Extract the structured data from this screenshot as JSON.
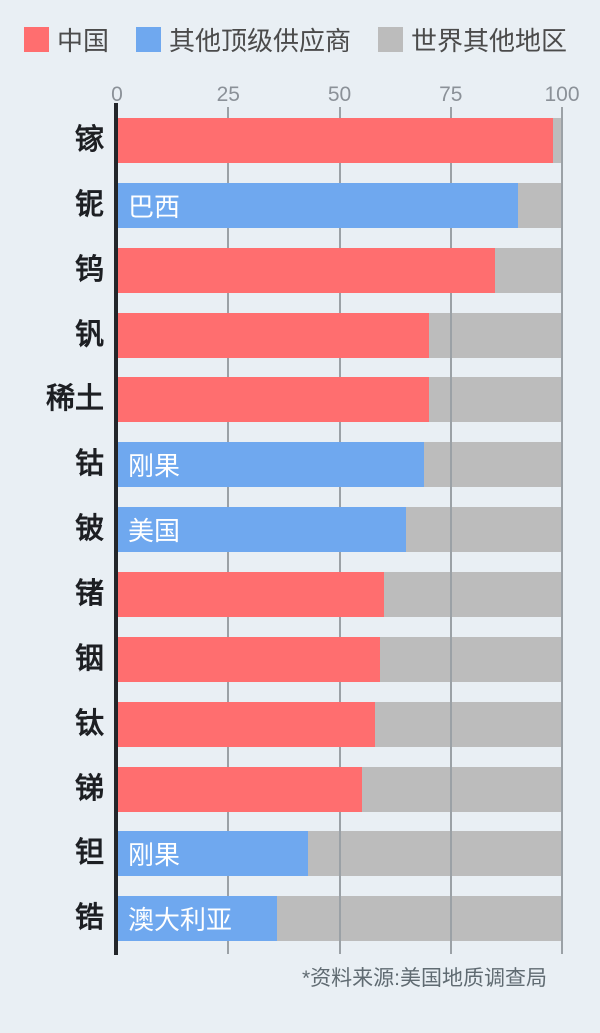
{
  "colors": {
    "background": "#e9eff4",
    "china_red": "#ff6e6f",
    "supplier_blue": "#6fa8ef",
    "rest_gray": "#bcbcbc",
    "axis_black": "#23262a",
    "gridline_gray": "#9ba1a6",
    "tick_text": "#8b9198",
    "legend_text": "#4b4b4b",
    "category_text": "#1d1f23",
    "bar_label_text": "#ffffff",
    "source_text": "#606b72"
  },
  "legend": {
    "items": [
      {
        "label": "中国",
        "color": "#ff6e6f"
      },
      {
        "label": "其他顶级供应商",
        "color": "#6fa8ef"
      },
      {
        "label": "世界其他地区",
        "color": "#bcbcbc"
      }
    ]
  },
  "chart_data": {
    "type": "bar",
    "orientation": "horizontal",
    "title": "",
    "xlabel": "",
    "ylabel": "",
    "xlim": [
      0,
      100
    ],
    "x_ticks": [
      0,
      25,
      50,
      75,
      100
    ],
    "grid": true,
    "legend_position": "top",
    "track_full_width": 100,
    "categories": [
      "镓",
      "铌",
      "钨",
      "钒",
      "稀土",
      "钴",
      "铍",
      "锗",
      "铟",
      "钛",
      "锑",
      "钽",
      "锆"
    ],
    "rows": [
      {
        "category": "镓",
        "series": "中国",
        "value": 98,
        "bar_label": ""
      },
      {
        "category": "铌",
        "series": "其他顶级供应商",
        "value": 90,
        "bar_label": "巴西"
      },
      {
        "category": "钨",
        "series": "中国",
        "value": 85,
        "bar_label": ""
      },
      {
        "category": "钒",
        "series": "中国",
        "value": 70,
        "bar_label": ""
      },
      {
        "category": "稀土",
        "series": "中国",
        "value": 70,
        "bar_label": ""
      },
      {
        "category": "钴",
        "series": "其他顶级供应商",
        "value": 69,
        "bar_label": "刚果"
      },
      {
        "category": "铍",
        "series": "其他顶级供应商",
        "value": 65,
        "bar_label": "美国"
      },
      {
        "category": "锗",
        "series": "中国",
        "value": 60,
        "bar_label": ""
      },
      {
        "category": "铟",
        "series": "中国",
        "value": 59,
        "bar_label": ""
      },
      {
        "category": "钛",
        "series": "中国",
        "value": 58,
        "bar_label": ""
      },
      {
        "category": "锑",
        "series": "中国",
        "value": 55,
        "bar_label": ""
      },
      {
        "category": "钽",
        "series": "其他顶级供应商",
        "value": 43,
        "bar_label": "刚果"
      },
      {
        "category": "锆",
        "series": "其他顶级供应商",
        "value": 36,
        "bar_label": "澳大利亚"
      }
    ]
  },
  "source_note": "*资料来源:美国地质调查局"
}
